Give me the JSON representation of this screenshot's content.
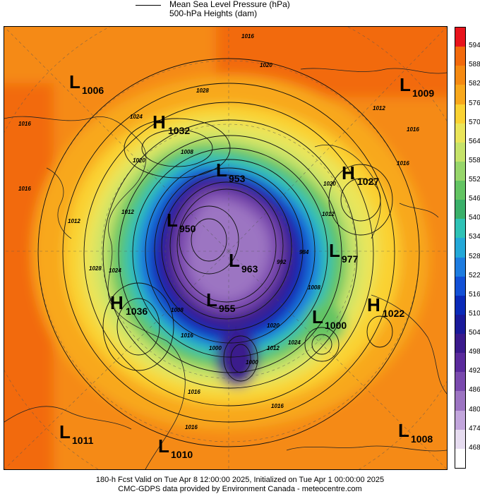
{
  "legend": {
    "mslp": "Mean Sea Level Pressure (hPa)",
    "heights": "500-hPa Heights (dam)"
  },
  "colorbar": {
    "levels": [
      "594",
      "588",
      "582",
      "576",
      "570",
      "564",
      "558",
      "552",
      "546",
      "540",
      "534",
      "528",
      "522",
      "516",
      "510",
      "504",
      "498",
      "492",
      "486",
      "480",
      "474",
      "468"
    ],
    "colors": [
      "#e8141c",
      "#f26a0c",
      "#f58a12",
      "#f8a81c",
      "#fad233",
      "#eae55a",
      "#c6e36a",
      "#97d66b",
      "#63c463",
      "#3ab06a",
      "#2ec2b6",
      "#23a8d8",
      "#1d7ce0",
      "#1250d6",
      "#0a2ab8",
      "#1a1a9a",
      "#3a1a8c",
      "#5a2a9c",
      "#7a4aae",
      "#9c74c2",
      "#c2a6dc",
      "#e6dcf0",
      "#ffffff"
    ]
  },
  "systems": [
    {
      "type": "L",
      "value": "1006"
    },
    {
      "type": "H",
      "value": "1032"
    },
    {
      "type": "L",
      "value": "1009"
    },
    {
      "type": "L",
      "value": "953"
    },
    {
      "type": "H",
      "value": "1027"
    },
    {
      "type": "L",
      "value": "950"
    },
    {
      "type": "L",
      "value": "977"
    },
    {
      "type": "L",
      "value": "963"
    },
    {
      "type": "H",
      "value": "1036"
    },
    {
      "type": "L",
      "value": "955"
    },
    {
      "type": "L",
      "value": "1000"
    },
    {
      "type": "H",
      "value": "1022"
    },
    {
      "type": "L",
      "value": "1011"
    },
    {
      "type": "L",
      "value": "1010"
    },
    {
      "type": "L",
      "value": "1008"
    }
  ],
  "isobar_labels": [
    "1016",
    "1020",
    "1028",
    "1024",
    "1016",
    "1012",
    "1016",
    "1020",
    "1016",
    "1012",
    "1008",
    "1020",
    "1012",
    "984",
    "992",
    "1008",
    "1028",
    "1024",
    "1012",
    "1008",
    "1016",
    "1000",
    "1016",
    "1016",
    "1012",
    "1024",
    "1020",
    "1016",
    "1000",
    "1016"
  ],
  "footer": {
    "line1": "180-h Fcst Valid on Tue Apr  8 12:00:00 2025, Initialized on Tue Apr  1 00:00:00 2025",
    "line2": "CMC-GDPS data provided by Environment Canada - meteocentre.com"
  }
}
